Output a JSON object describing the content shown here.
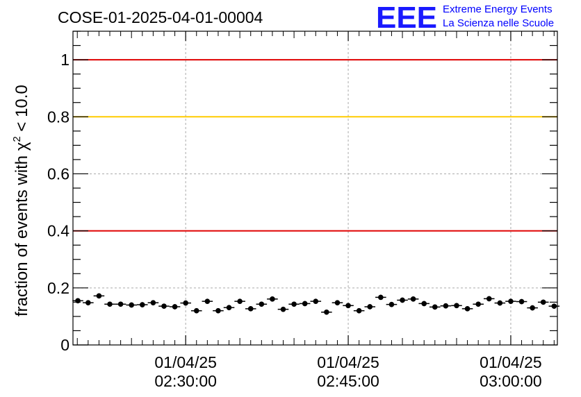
{
  "title": "COSE-01-2025-04-01-00004",
  "logo": {
    "letters": "EEE",
    "line1": "Extreme Energy Events",
    "line2": "La Scienza nelle Scuole",
    "color": "#0000ff"
  },
  "chart_data": {
    "type": "scatter",
    "title": "COSE-01-2025-04-01-00004",
    "ylabel_main": "fraction of events with ",
    "ylabel_chi": "χ",
    "ylabel_sup": "2",
    "ylabel_tail": " < 10.0",
    "xlabel": "",
    "ylim": [
      0,
      1.1
    ],
    "xlim_minutes": [
      -10.4,
      34.3
    ],
    "grid": true,
    "yticks": [
      0,
      0.2,
      0.4,
      0.6,
      0.8,
      1
    ],
    "ytick_labels": [
      "0",
      "0.2",
      "0.4",
      "0.6",
      "0.8",
      "1"
    ],
    "xticks": [
      {
        "minutes": 0,
        "date": "01/04/25",
        "time": "02:30:00"
      },
      {
        "minutes": 15,
        "date": "01/04/25",
        "time": "02:45:00"
      },
      {
        "minutes": 30,
        "date": "01/04/25",
        "time": "03:00:00"
      }
    ],
    "reference_lines": [
      {
        "y": 1.0,
        "color": "#e00000"
      },
      {
        "y": 0.8,
        "color": "#ffcc00"
      },
      {
        "y": 0.4,
        "color": "#e00000"
      }
    ],
    "points_x_minutes": [
      -9.95,
      -9.0,
      -8.0,
      -7.0,
      -6.0,
      -5.0,
      -4.0,
      -3.0,
      -2.0,
      -1.0,
      0.0,
      1.0,
      2.0,
      3.0,
      4.0,
      5.0,
      6.0,
      7.0,
      8.0,
      9.0,
      10.0,
      11.0,
      12.0,
      13.0,
      14.0,
      15.0,
      16.0,
      17.0,
      18.0,
      19.0,
      20.0,
      21.0,
      22.0,
      23.0,
      24.0,
      25.0,
      26.0,
      27.0,
      28.0,
      29.0,
      30.0,
      31.0,
      32.0,
      33.0,
      34.0
    ],
    "points_y": [
      0.155,
      0.148,
      0.172,
      0.143,
      0.143,
      0.14,
      0.141,
      0.148,
      0.136,
      0.134,
      0.147,
      0.12,
      0.153,
      0.12,
      0.131,
      0.153,
      0.127,
      0.143,
      0.161,
      0.125,
      0.143,
      0.145,
      0.153,
      0.115,
      0.148,
      0.138,
      0.12,
      0.134,
      0.167,
      0.142,
      0.157,
      0.161,
      0.145,
      0.133,
      0.137,
      0.138,
      0.127,
      0.143,
      0.162,
      0.147,
      0.153,
      0.152,
      0.13,
      0.15,
      0.136
    ],
    "error_y": 0.009,
    "marker_color": "#000000"
  }
}
